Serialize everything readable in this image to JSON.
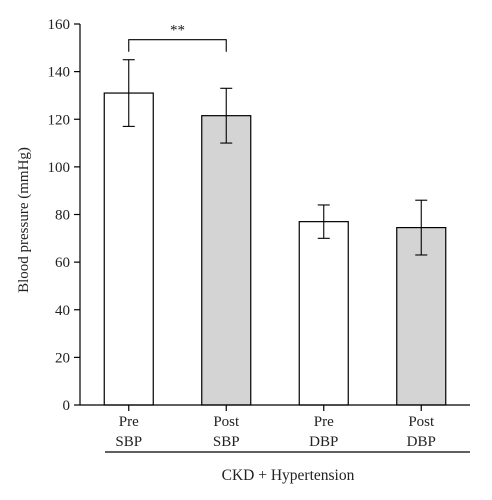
{
  "chart_data": {
    "type": "bar",
    "title": "",
    "ylabel": "Blood pressure (mmHg)",
    "xlabel": "",
    "group_label": "CKD + Hypertension",
    "ylim": [
      0,
      160
    ],
    "yticks": [
      0,
      20,
      40,
      60,
      80,
      100,
      120,
      140,
      160
    ],
    "grid": false,
    "legend": "none",
    "categories": [
      [
        "Pre",
        "SBP"
      ],
      [
        "Post",
        "SBP"
      ],
      [
        "Pre",
        "DBP"
      ],
      [
        "Post",
        "DBP"
      ]
    ],
    "values": [
      131,
      121.5,
      77,
      74.5
    ],
    "error_low": [
      117,
      110,
      70,
      63
    ],
    "error_high": [
      145,
      133,
      84,
      86
    ],
    "bar_colors": [
      "#ffffff",
      "#d4d4d4",
      "#ffffff",
      "#d4d4d4"
    ],
    "significance": [
      {
        "from": 0,
        "to": 1,
        "label": "**"
      }
    ]
  }
}
